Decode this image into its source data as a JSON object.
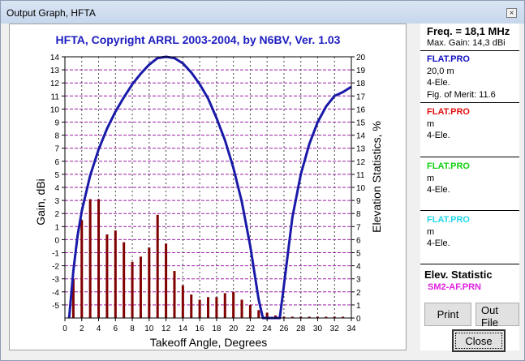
{
  "window": {
    "title": "Output Graph, HFTA",
    "close_glyph": "×"
  },
  "chart_data": {
    "type": "bar",
    "title": "HFTA, Copyright ARRL 2003-2004, by N6BV, Ver. 1.03",
    "xlabel": "Takeoff Angle, Degrees",
    "ylabel": "Gain, dBi",
    "y2label": "Elevation Statistics, %",
    "xlim": [
      0,
      34
    ],
    "ylim": [
      -6,
      14
    ],
    "y2lim": [
      0,
      20
    ],
    "x_ticks": [
      0,
      2,
      4,
      6,
      8,
      10,
      12,
      14,
      16,
      18,
      20,
      22,
      24,
      26,
      28,
      30,
      32,
      34
    ],
    "y_ticks": [
      -5,
      -4,
      -3,
      -2,
      -1,
      0,
      1,
      2,
      3,
      4,
      5,
      6,
      7,
      8,
      9,
      10,
      11,
      12,
      13,
      14
    ],
    "y2_ticks": [
      0,
      1,
      2,
      3,
      4,
      5,
      6,
      7,
      8,
      9,
      10,
      11,
      12,
      13,
      14,
      15,
      16,
      17,
      18,
      19,
      20
    ],
    "grid": true,
    "series": [
      {
        "type": "bar",
        "axis": "right",
        "color": "#800000",
        "x": [
          1,
          2,
          3,
          4,
          5,
          6,
          7,
          8,
          9,
          10,
          11,
          12,
          13,
          14,
          15,
          16,
          17,
          18,
          19,
          20,
          21,
          22,
          23,
          24,
          25,
          26,
          27,
          28,
          29,
          30,
          31,
          32,
          33
        ],
        "values": [
          3.0,
          7.5,
          9.1,
          9.1,
          6.4,
          6.7,
          5.8,
          4.3,
          4.7,
          5.4,
          7.9,
          5.7,
          3.6,
          2.5,
          1.8,
          1.4,
          1.6,
          1.6,
          1.9,
          2.0,
          1.4,
          1.0,
          0.6,
          0.4,
          0.2,
          0.1,
          0.1,
          0.1,
          0.1,
          0.1,
          0.1,
          0.1,
          0.1
        ]
      },
      {
        "type": "line",
        "axis": "left",
        "color": "#1a1aa8",
        "x": [
          0.5,
          1,
          1.5,
          2,
          3,
          4,
          5,
          6,
          7,
          8,
          9,
          10,
          11,
          12,
          13,
          14,
          15,
          16,
          17,
          18,
          19,
          20,
          21,
          22,
          23,
          23.5,
          24,
          25.5,
          26,
          27,
          28,
          29,
          30,
          31,
          32,
          33,
          34
        ],
        "values": [
          -6,
          -2.4,
          0.3,
          2.2,
          4.9,
          6.9,
          8.5,
          9.8,
          10.9,
          11.9,
          12.7,
          13.4,
          13.9,
          14.0,
          13.9,
          13.5,
          12.8,
          11.9,
          10.8,
          9.3,
          7.6,
          5.5,
          2.9,
          -0.5,
          -4.6,
          -6,
          -6,
          -6,
          -3.5,
          1.7,
          5.0,
          7.3,
          9.0,
          10.2,
          11.0,
          11.3,
          11.7
        ]
      }
    ]
  },
  "panel": {
    "freq": "Freq. = 18,1 MHz",
    "max_gain": "Max. Gain: 14,3 dBi",
    "entries": [
      {
        "file": "FLAT.PRO",
        "color": "#1010c0",
        "line1": "20,0 m",
        "line2": "4-Ele.",
        "line3": "Fig. of Merit:  11.6"
      },
      {
        "file": "FLAT.PRO",
        "color": "#e01010",
        "line1": " m",
        "line2": "4-Ele."
      },
      {
        "file": "FLAT.PRO",
        "color": "#10d010",
        "line1": " m",
        "line2": "4-Ele."
      },
      {
        "file": "FLAT.PRO",
        "color": "#20d8e8",
        "line1": " m",
        "line2": "4-Ele."
      }
    ],
    "elev_title": "Elev. Statistic",
    "elev_file": "SM2-AF.PRN"
  },
  "buttons": {
    "print": "Print",
    "outfile": "Out File",
    "close": "Close"
  }
}
